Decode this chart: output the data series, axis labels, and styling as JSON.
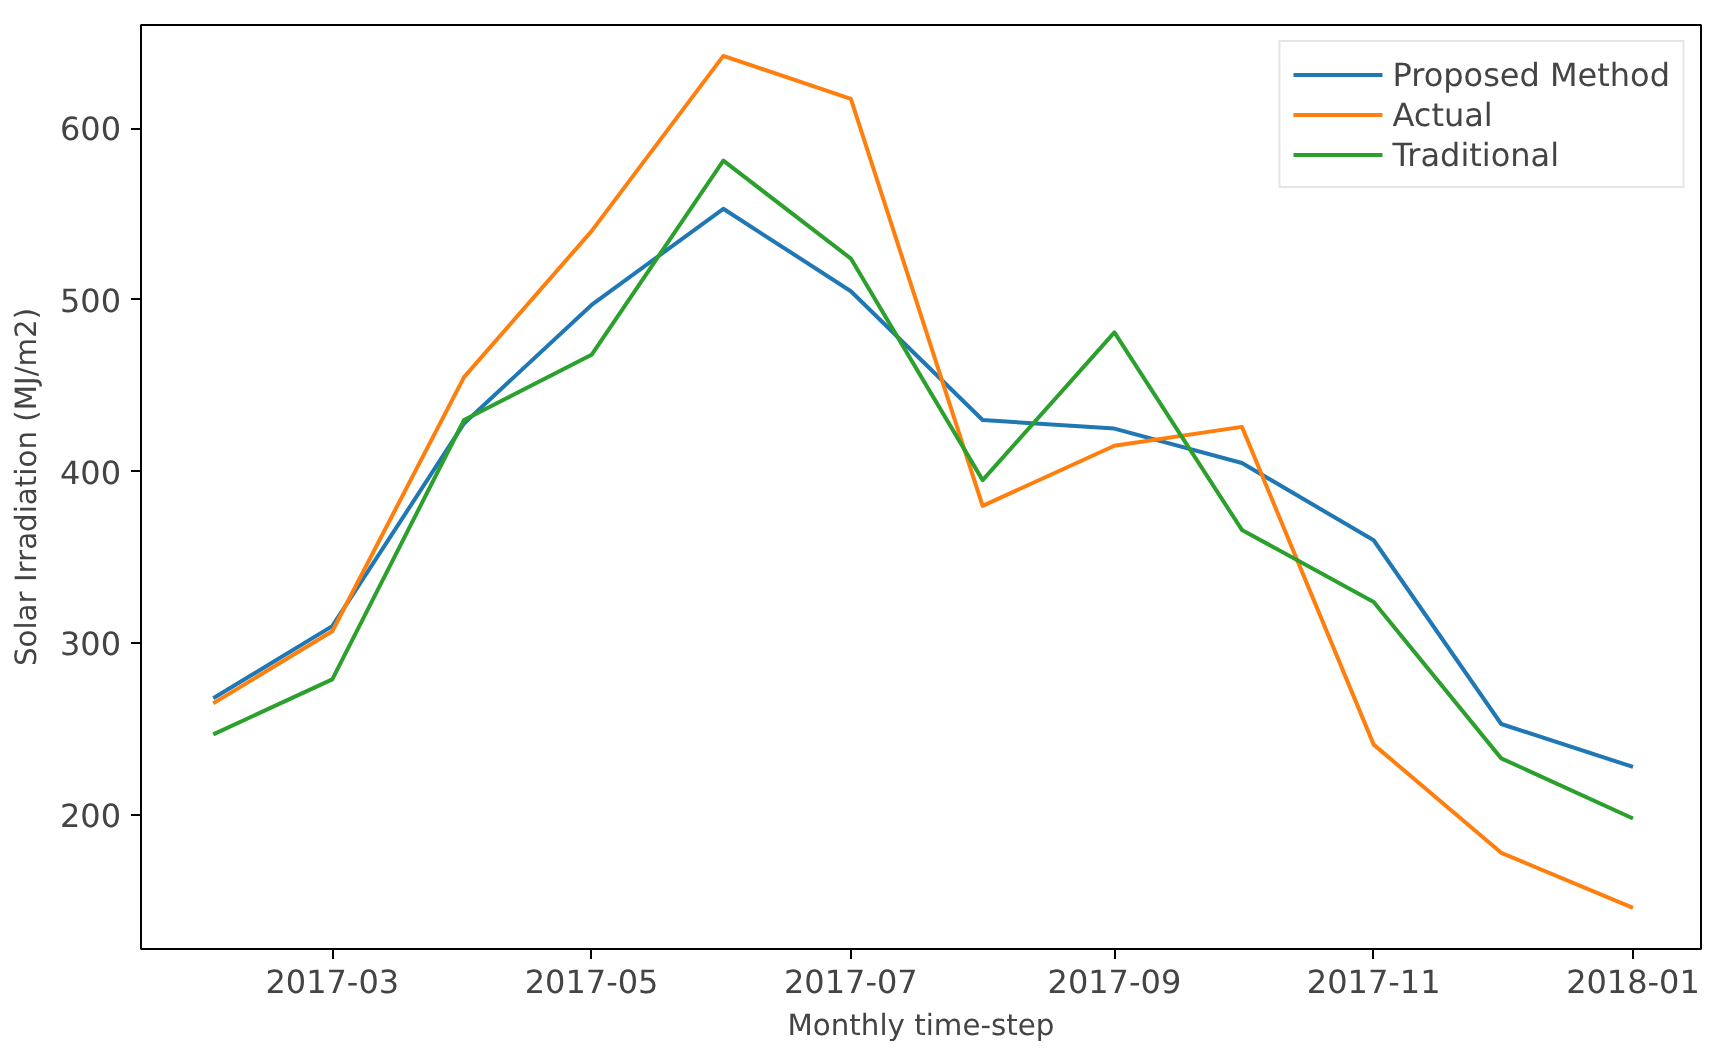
{
  "chart_data": {
    "type": "line",
    "xlabel": "Monthly time-step",
    "ylabel": "Solar Irradiation (MJ/m2)",
    "x": [
      "2017-02-01",
      "2017-03-01",
      "2017-04-01",
      "2017-05-01",
      "2017-06-01",
      "2017-07-01",
      "2017-08-01",
      "2017-09-01",
      "2017-10-01",
      "2017-11-01",
      "2017-12-01",
      "2018-01-01"
    ],
    "series": [
      {
        "name": "Proposed Method",
        "color": "#1f77b4",
        "values": [
          268,
          310,
          428,
          497,
          553,
          505,
          430,
          425,
          405,
          360,
          253,
          228
        ]
      },
      {
        "name": "Actual",
        "color": "#ff7f0e",
        "values": [
          265,
          307,
          455,
          540,
          642,
          617,
          380,
          415,
          426,
          241,
          178,
          146
        ]
      },
      {
        "name": "Traditional",
        "color": "#2ca02c",
        "values": [
          247,
          279,
          430,
          468,
          581,
          524,
          395,
          481,
          366,
          324,
          233,
          198
        ]
      }
    ],
    "xlim": [
      "2017-01-15",
      "2018-01-17"
    ],
    "ylim": [
      122,
      660
    ],
    "xticks": [
      "2017-03",
      "2017-05",
      "2017-07",
      "2017-09",
      "2017-11",
      "2018-01"
    ],
    "yticks": [
      200,
      300,
      400,
      500,
      600
    ],
    "grid": false,
    "legend": "top right",
    "marker": "none",
    "line_style": "solid"
  }
}
